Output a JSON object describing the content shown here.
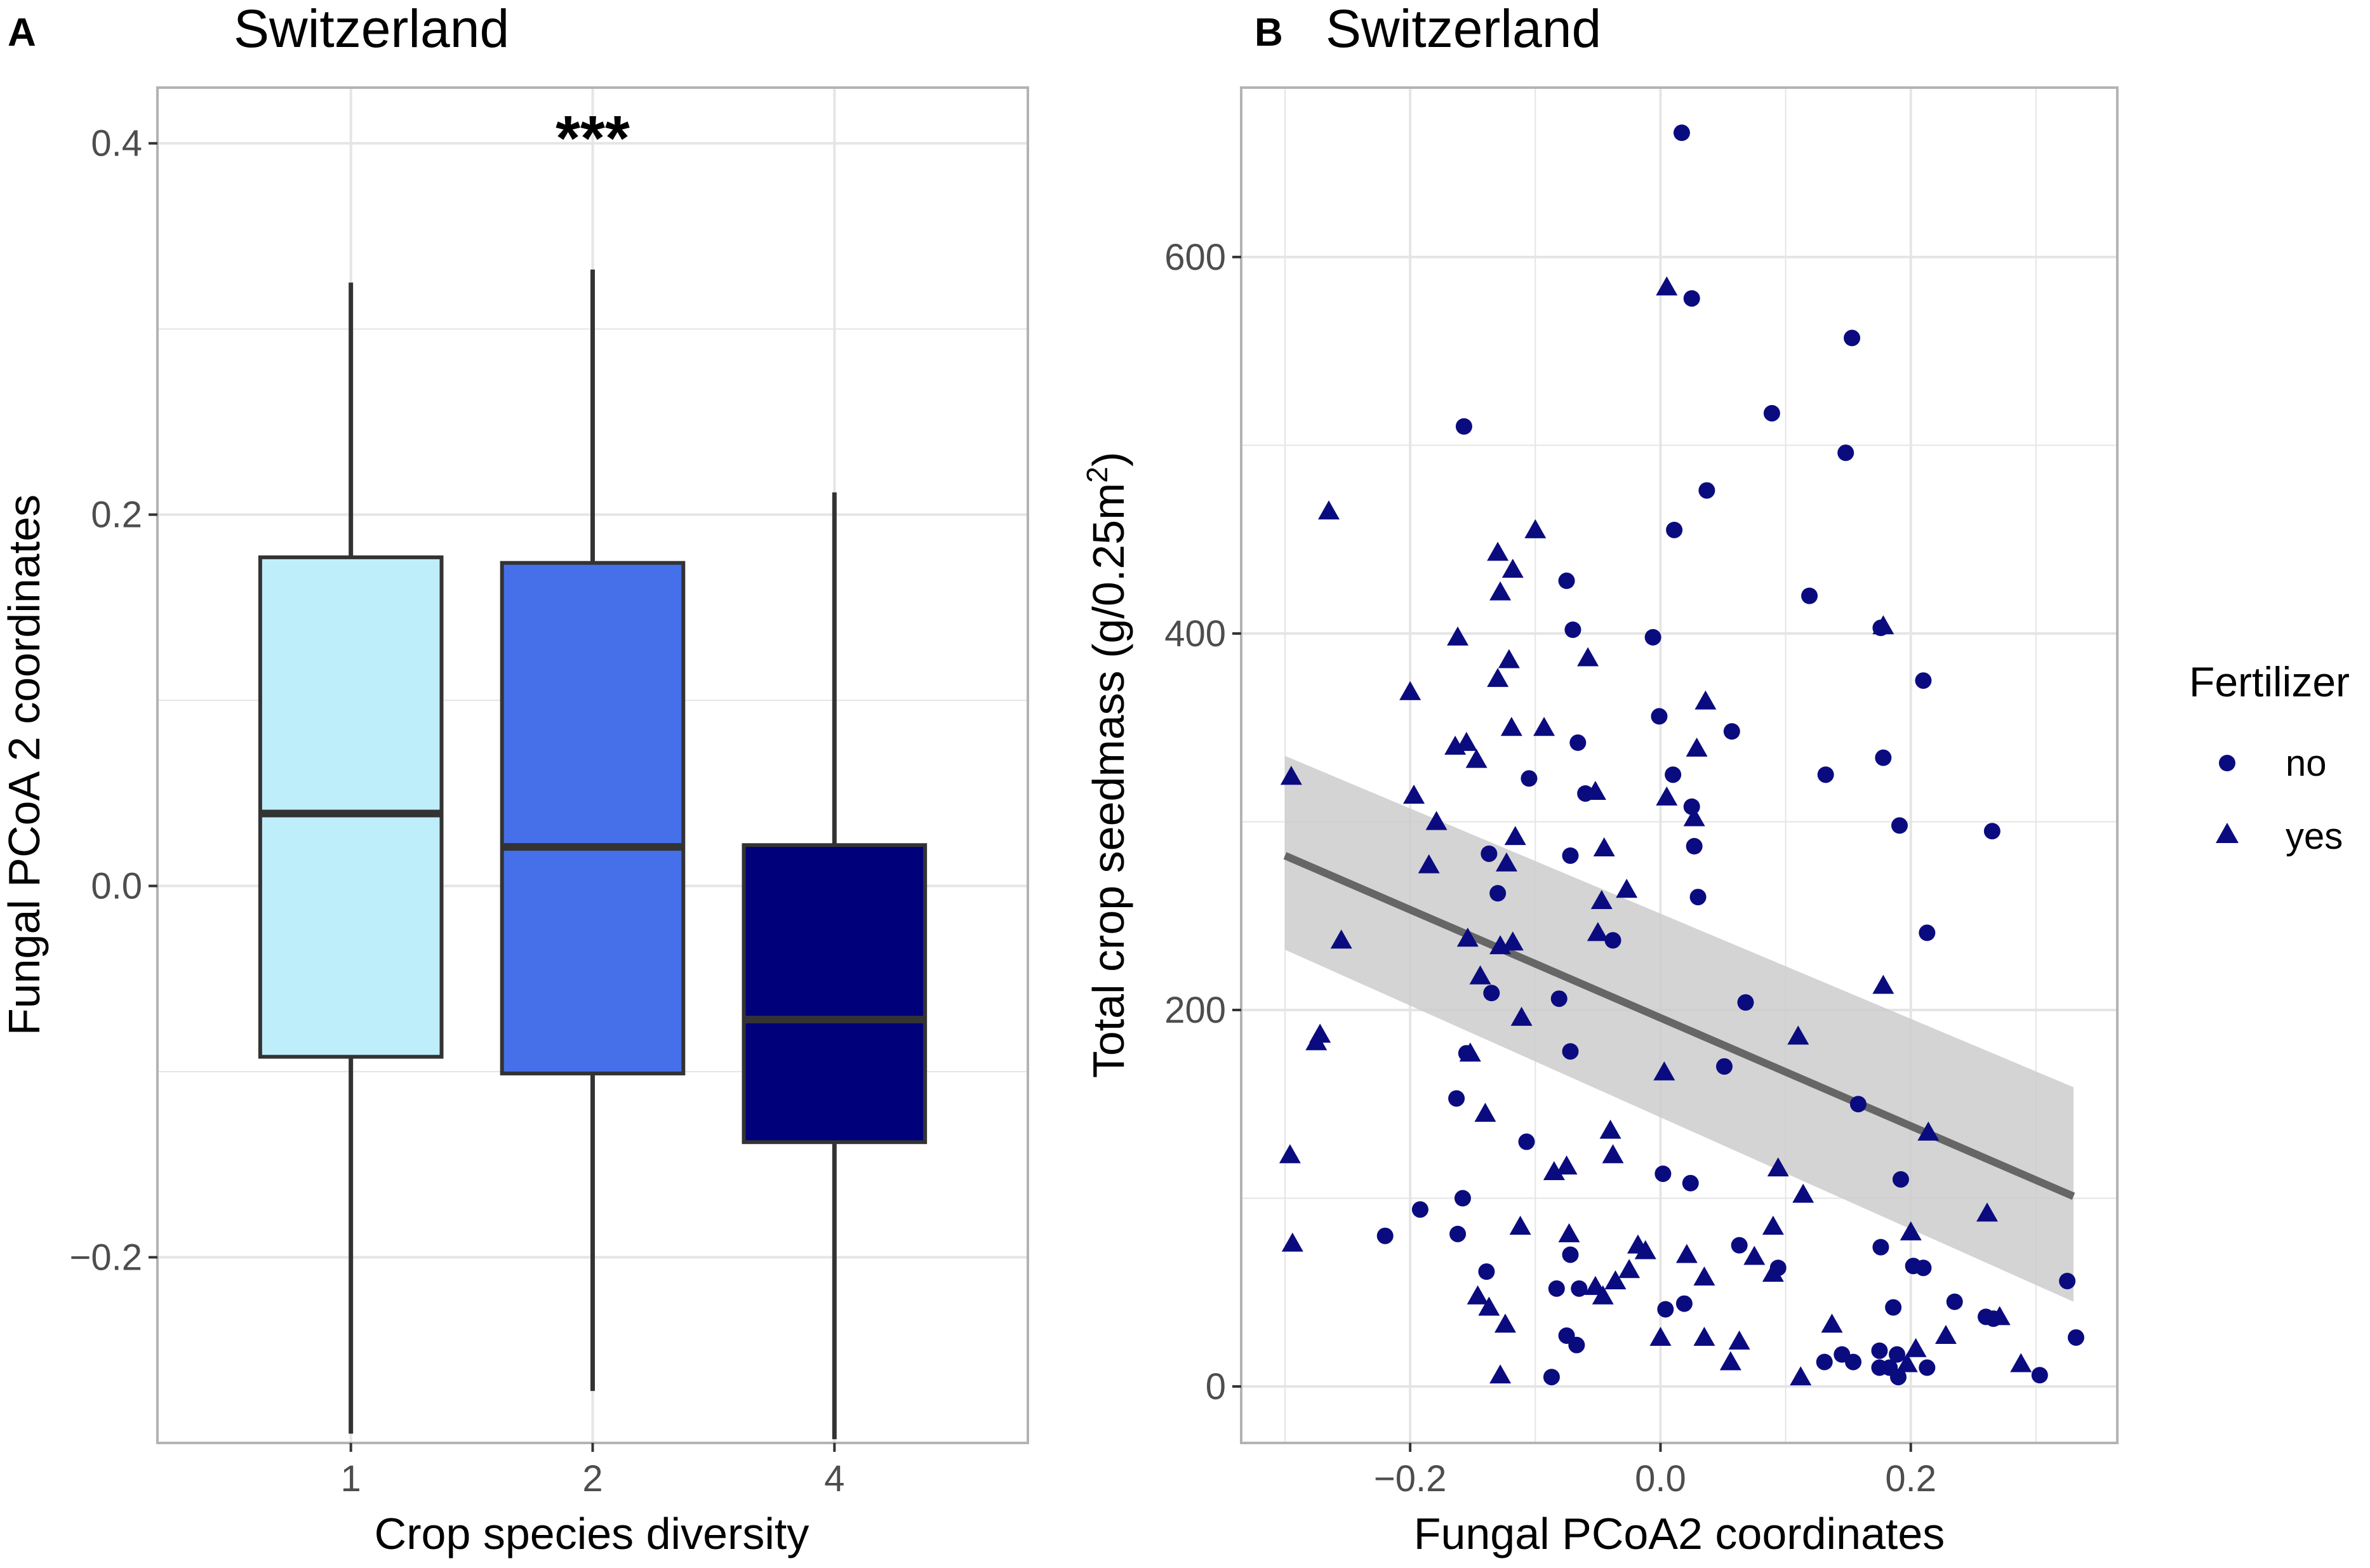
{
  "colors": {
    "box1": "#bfeefb",
    "box2": "#4570ea",
    "box3": "#00007a",
    "point": "#0b0b80",
    "trend": "#666666",
    "ribbon": "#cccccc",
    "grid": "#e5e5e5",
    "frame": "#b3b3b3",
    "whisker": "#333333"
  },
  "chart_data": [
    {
      "panel": "A",
      "type": "box",
      "title": "Switzerland",
      "xlabel": "Crop species diversity",
      "ylabel": "Fungal PCoA 2 coordinates",
      "categories": [
        "1",
        "2",
        "4"
      ],
      "ylim": [
        -0.3,
        0.43
      ],
      "yticks": [
        -0.2,
        0.0,
        0.2,
        0.4
      ],
      "ytick_labels": [
        "−0.2",
        "0.0",
        "0.2",
        "0.4"
      ],
      "annotation": "***",
      "annotation_category": "2",
      "annotation_y": 0.415,
      "boxes": [
        {
          "category": "1",
          "min": -0.295,
          "q1": -0.092,
          "median": 0.039,
          "q3": 0.177,
          "max": 0.325,
          "color": "#bfeefb"
        },
        {
          "category": "2",
          "min": -0.272,
          "q1": -0.101,
          "median": 0.021,
          "q3": 0.174,
          "max": 0.332,
          "color": "#4570ea"
        },
        {
          "category": "4",
          "min": -0.298,
          "q1": -0.138,
          "median": -0.072,
          "q3": 0.022,
          "max": 0.212,
          "color": "#00007a"
        }
      ]
    },
    {
      "panel": "B",
      "type": "scatter",
      "title": "Switzerland",
      "xlabel": "Fungal PCoA2 coordinates",
      "ylabel_main": "Total crop seedmass (g/0.25m",
      "ylabel_sup": "2",
      "ylabel_end": ")",
      "xlim": [
        -0.335,
        0.365
      ],
      "ylim": [
        -30,
        690
      ],
      "xticks": [
        -0.2,
        0.0,
        0.2
      ],
      "xtick_labels": [
        "−0.2",
        "0.0",
        "0.2"
      ],
      "yticks": [
        0,
        200,
        400,
        600
      ],
      "ytick_labels": [
        "0",
        "200",
        "400",
        "600"
      ],
      "legend": {
        "title": "Fertilizer",
        "position": "right",
        "entries": [
          {
            "label": "no",
            "shape": "circle"
          },
          {
            "label": "yes",
            "shape": "triangle"
          }
        ]
      },
      "trend": {
        "x": [
          -0.3,
          0.33
        ],
        "y": [
          282,
          101
        ],
        "ci_lower": [
          232,
          45
        ],
        "ci_upper": [
          335,
          159
        ]
      },
      "series": [
        {
          "name": "no",
          "shape": "circle",
          "points": [
            [
              0.017,
              666
            ],
            [
              0.025,
              578
            ],
            [
              0.153,
              557
            ],
            [
              0.089,
              517
            ],
            [
              -0.157,
              510
            ],
            [
              0.148,
              496
            ],
            [
              0.037,
              476
            ],
            [
              0.011,
              455
            ],
            [
              -0.075,
              428
            ],
            [
              0.119,
              420
            ],
            [
              -0.07,
              402
            ],
            [
              -0.006,
              398
            ],
            [
              0.176,
              403
            ],
            [
              0.21,
              375
            ],
            [
              -0.001,
              356
            ],
            [
              0.057,
              348
            ],
            [
              -0.066,
              342
            ],
            [
              0.132,
              325
            ],
            [
              -0.105,
              323
            ],
            [
              0.01,
              325
            ],
            [
              0.178,
              334
            ],
            [
              0.025,
              308
            ],
            [
              0.265,
              295
            ],
            [
              0.191,
              298
            ],
            [
              -0.06,
              315
            ],
            [
              0.027,
              287
            ],
            [
              -0.072,
              282
            ],
            [
              -0.137,
              283
            ],
            [
              -0.038,
              237
            ],
            [
              0.03,
              260
            ],
            [
              -0.13,
              262
            ],
            [
              0.213,
              241
            ],
            [
              -0.135,
              209
            ],
            [
              -0.081,
              206
            ],
            [
              0.068,
              204
            ],
            [
              -0.072,
              178
            ],
            [
              -0.155,
              177
            ],
            [
              0.051,
              170
            ],
            [
              -0.158,
              100
            ],
            [
              -0.163,
              153
            ],
            [
              0.158,
              150
            ],
            [
              0.192,
              110
            ],
            [
              0.002,
              113
            ],
            [
              0.024,
              108
            ],
            [
              -0.107,
              130
            ],
            [
              -0.22,
              80
            ],
            [
              -0.192,
              94
            ],
            [
              -0.162,
              81
            ],
            [
              -0.139,
              61
            ],
            [
              -0.072,
              70
            ],
            [
              -0.065,
              52
            ],
            [
              -0.067,
              22
            ],
            [
              -0.075,
              27
            ],
            [
              -0.083,
              52
            ],
            [
              0.063,
              75
            ],
            [
              0.094,
              63
            ],
            [
              0.176,
              74
            ],
            [
              0.202,
              64
            ],
            [
              0.21,
              63
            ],
            [
              0.019,
              44
            ],
            [
              0.004,
              41
            ],
            [
              0.186,
              42
            ],
            [
              0.189,
              17
            ],
            [
              0.175,
              19
            ],
            [
              0.235,
              45
            ],
            [
              0.131,
              13
            ],
            [
              0.154,
              13
            ],
            [
              0.145,
              17
            ],
            [
              0.266,
              36
            ],
            [
              0.26,
              37
            ],
            [
              0.175,
              10
            ],
            [
              0.183,
              10
            ],
            [
              0.19,
              5
            ],
            [
              0.213,
              10
            ],
            [
              0.303,
              6
            ],
            [
              0.325,
              56
            ],
            [
              0.332,
              26
            ],
            [
              -0.087,
              5
            ]
          ]
        },
        {
          "name": "yes",
          "shape": "triangle",
          "points": [
            [
              0.005,
              584
            ],
            [
              -0.265,
              465
            ],
            [
              -0.1,
              455
            ],
            [
              -0.13,
              443
            ],
            [
              -0.118,
              434
            ],
            [
              -0.128,
              422
            ],
            [
              -0.162,
              398
            ],
            [
              0.178,
              404
            ],
            [
              -0.121,
              386
            ],
            [
              -0.058,
              387
            ],
            [
              -0.13,
              376
            ],
            [
              0.036,
              364
            ],
            [
              -0.2,
              369
            ],
            [
              -0.119,
              350
            ],
            [
              -0.093,
              350
            ],
            [
              0.029,
              339
            ],
            [
              -0.155,
              342
            ],
            [
              -0.164,
              340
            ],
            [
              -0.147,
              333
            ],
            [
              -0.052,
              316
            ],
            [
              0.005,
              313
            ],
            [
              -0.197,
              314
            ],
            [
              -0.295,
              324
            ],
            [
              0.027,
              302
            ],
            [
              -0.179,
              300
            ],
            [
              -0.116,
              292
            ],
            [
              -0.045,
              286
            ],
            [
              -0.123,
              278
            ],
            [
              -0.027,
              264
            ],
            [
              -0.047,
              258
            ],
            [
              -0.185,
              277
            ],
            [
              -0.255,
              237
            ],
            [
              -0.154,
              238
            ],
            [
              -0.128,
              234
            ],
            [
              -0.118,
              236
            ],
            [
              -0.05,
              241
            ],
            [
              -0.144,
              218
            ],
            [
              0.178,
              213
            ],
            [
              -0.275,
              183
            ],
            [
              -0.272,
              187
            ],
            [
              -0.111,
              196
            ],
            [
              -0.152,
              177
            ],
            [
              0.11,
              186
            ],
            [
              0.003,
              167
            ],
            [
              -0.14,
              145
            ],
            [
              0.214,
              135
            ],
            [
              -0.04,
              136
            ],
            [
              -0.038,
              123
            ],
            [
              -0.085,
              114
            ],
            [
              -0.075,
              117
            ],
            [
              0.094,
              116
            ],
            [
              0.114,
              102
            ],
            [
              -0.296,
              123
            ],
            [
              0.2,
              82
            ],
            [
              0.261,
              92
            ],
            [
              -0.294,
              76
            ],
            [
              -0.073,
              81
            ],
            [
              -0.112,
              85
            ],
            [
              0.09,
              85
            ],
            [
              0.075,
              69
            ],
            [
              -0.018,
              75
            ],
            [
              -0.012,
              72
            ],
            [
              0.021,
              70
            ],
            [
              -0.025,
              62
            ],
            [
              0.035,
              58
            ],
            [
              -0.036,
              56
            ],
            [
              -0.052,
              53
            ],
            [
              0.09,
              60
            ],
            [
              -0.146,
              48
            ],
            [
              -0.137,
              42
            ],
            [
              -0.124,
              33
            ],
            [
              -0.046,
              48
            ],
            [
              0.137,
              33
            ],
            [
              0.271,
              37
            ],
            [
              0.228,
              27
            ],
            [
              0.204,
              20
            ],
            [
              0.0,
              26
            ],
            [
              0.035,
              26
            ],
            [
              0.063,
              24
            ],
            [
              0.056,
              13
            ],
            [
              0.197,
              12
            ],
            [
              0.288,
              12
            ],
            [
              0.112,
              5
            ],
            [
              -0.128,
              6
            ]
          ]
        }
      ]
    }
  ]
}
